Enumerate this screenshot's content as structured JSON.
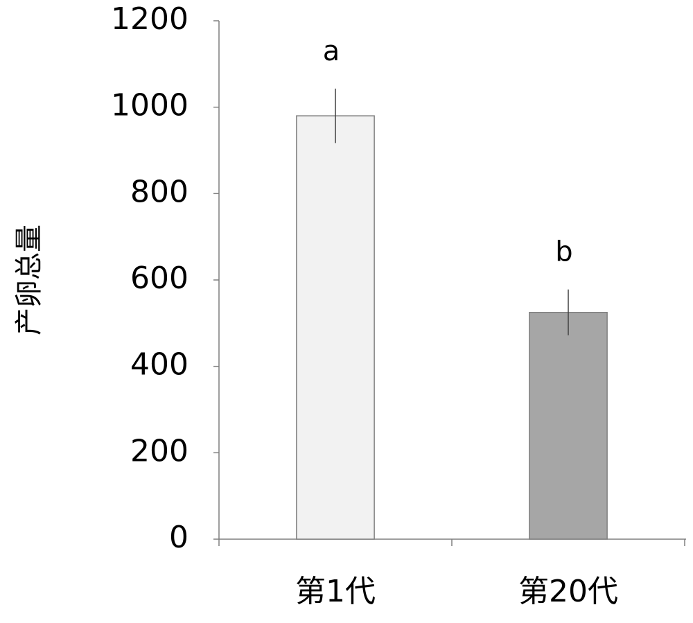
{
  "chart_data": {
    "type": "bar",
    "ylabel": "产卵总量",
    "categories": [
      "第1代",
      "第20代"
    ],
    "values": [
      980,
      525
    ],
    "errors": [
      63,
      53
    ],
    "labels": [
      "a",
      "b"
    ],
    "colors": [
      "#f2f2f2",
      "#a6a6a6"
    ],
    "ylim": [
      0,
      1200
    ],
    "yticks": [
      0,
      200,
      400,
      600,
      800,
      1000,
      1200
    ],
    "grid": false
  }
}
